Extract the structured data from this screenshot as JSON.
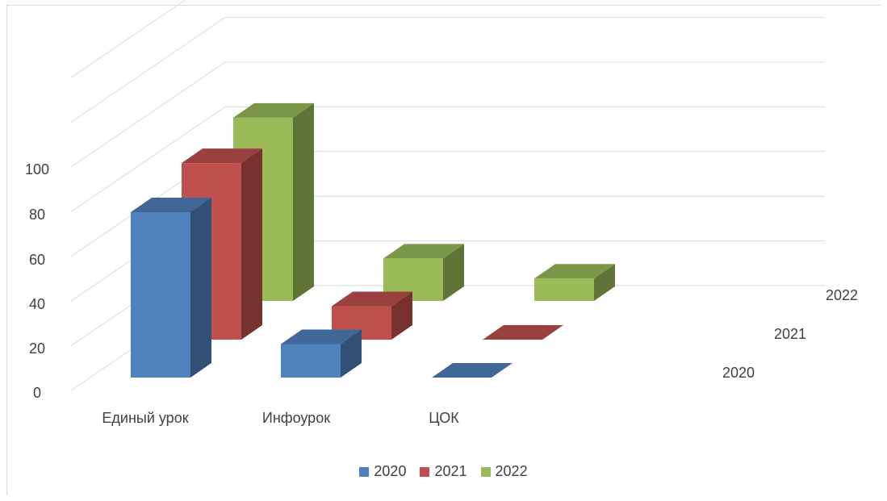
{
  "chart_data": {
    "type": "bar",
    "subtype": "3d-column",
    "categories": [
      "Единый урок",
      "Инфоурок",
      "ЦОК"
    ],
    "series": [
      {
        "name": "2020",
        "values": [
          74,
          15,
          0
        ],
        "color": "#4f81bd"
      },
      {
        "name": "2021",
        "values": [
          79,
          15,
          0
        ],
        "color": "#c0504d"
      },
      {
        "name": "2022",
        "values": [
          82,
          19,
          10
        ],
        "color": "#9bbb59"
      }
    ],
    "depth_labels": [
      "2022",
      "2021",
      "2020"
    ],
    "y_ticks": [
      "0",
      "20",
      "40",
      "60",
      "80",
      "100"
    ],
    "ylim": [
      0,
      100
    ],
    "grid": true,
    "legend_position": "bottom",
    "legend": [
      "2020",
      "2021",
      "2022"
    ]
  }
}
